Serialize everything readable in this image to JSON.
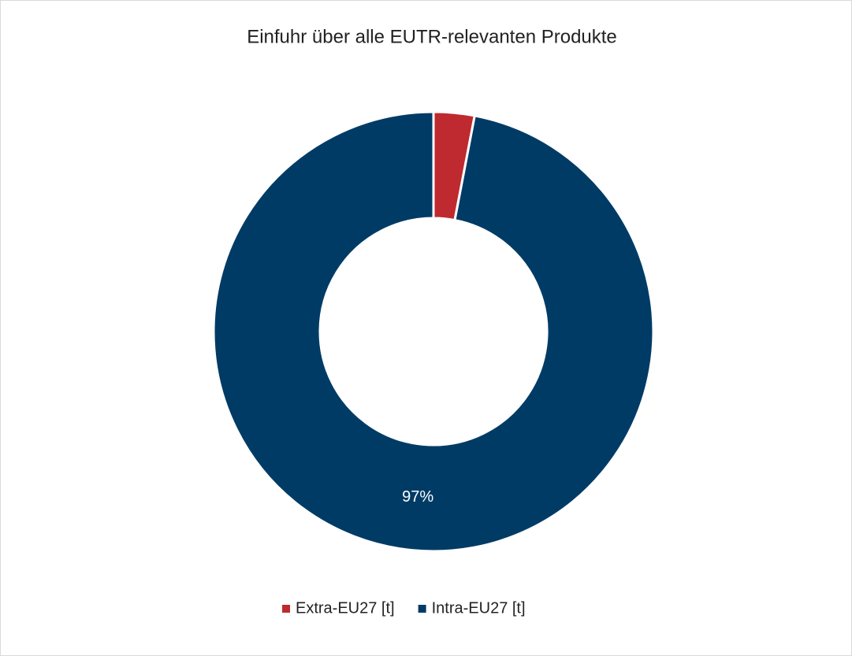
{
  "chart_data": {
    "type": "donut",
    "title": "Einfuhr über alle EUTR-relevanten Produkte",
    "categories": [
      "Extra-EU27 [t]",
      "Intra-EU27 [t]"
    ],
    "values": [
      3,
      97
    ],
    "value_labels": [
      null,
      "97%"
    ],
    "colors": [
      "#be2a2f",
      "#003b66"
    ],
    "legend": "bottom"
  }
}
